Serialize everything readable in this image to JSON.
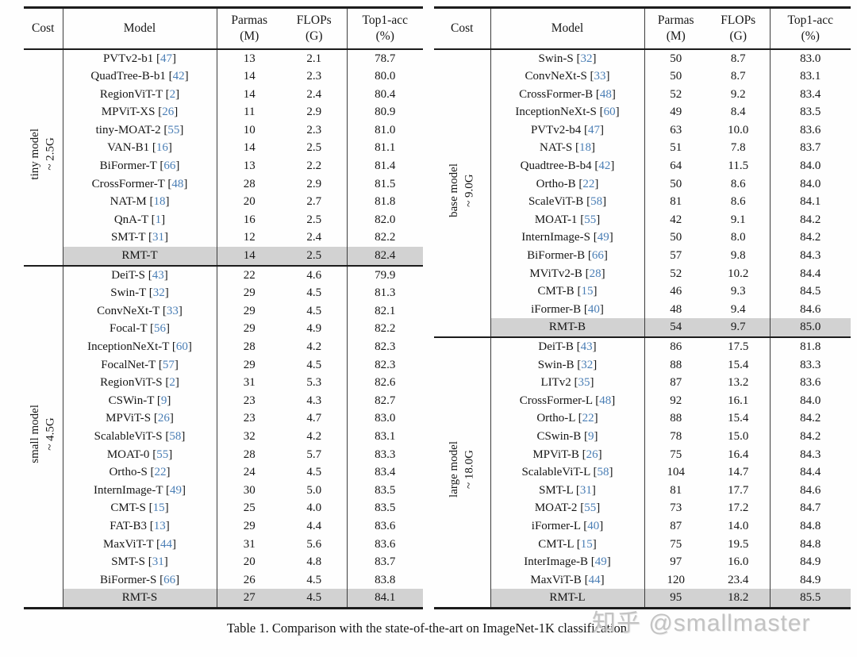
{
  "caption": "Table 1. Comparison with the state-of-the-art on ImageNet-1K classification.",
  "watermark": "知乎 @smallmaster",
  "citation": {
    "open": "[",
    "close": "]"
  },
  "colors": {
    "ref_blue": "#4a7eb5",
    "highlight_gray": "#d2d2d2"
  },
  "header": {
    "cost": "Cost",
    "model": "Model",
    "params_line1": "Parmas",
    "params_line2": "(M)",
    "flops_line1": "FLOPs",
    "flops_line2": "(G)",
    "acc_line1": "Top1-acc",
    "acc_line2": "(%)"
  },
  "tables": [
    {
      "sections": [
        {
          "cost_line1": "tiny model",
          "cost_line2": "~ 2.5G",
          "rows": [
            {
              "model": "PVTv2-b1",
              "ref": "47",
              "params": "13",
              "flops": "2.1",
              "acc": "78.7"
            },
            {
              "model": "QuadTree-B-b1",
              "ref": "42",
              "params": "14",
              "flops": "2.3",
              "acc": "80.0"
            },
            {
              "model": "RegionViT-T",
              "ref": "2",
              "params": "14",
              "flops": "2.4",
              "acc": "80.4"
            },
            {
              "model": "MPViT-XS",
              "ref": "26",
              "params": "11",
              "flops": "2.9",
              "acc": "80.9"
            },
            {
              "model": "tiny-MOAT-2",
              "ref": "55",
              "params": "10",
              "flops": "2.3",
              "acc": "81.0"
            },
            {
              "model": "VAN-B1",
              "ref": "16",
              "params": "14",
              "flops": "2.5",
              "acc": "81.1"
            },
            {
              "model": "BiFormer-T",
              "ref": "66",
              "params": "13",
              "flops": "2.2",
              "acc": "81.4"
            },
            {
              "model": "CrossFormer-T",
              "ref": "48",
              "params": "28",
              "flops": "2.9",
              "acc": "81.5"
            },
            {
              "model": "NAT-M",
              "ref": "18",
              "params": "20",
              "flops": "2.7",
              "acc": "81.8"
            },
            {
              "model": "QnA-T",
              "ref": "1",
              "params": "16",
              "flops": "2.5",
              "acc": "82.0"
            },
            {
              "model": "SMT-T",
              "ref": "31",
              "params": "12",
              "flops": "2.4",
              "acc": "82.2"
            },
            {
              "model": "RMT-T",
              "ref": null,
              "params": "14",
              "flops": "2.5",
              "acc": "82.4",
              "highlight": true
            }
          ]
        },
        {
          "cost_line1": "small model",
          "cost_line2": "~ 4.5G",
          "rows": [
            {
              "model": "DeiT-S",
              "ref": "43",
              "params": "22",
              "flops": "4.6",
              "acc": "79.9"
            },
            {
              "model": "Swin-T",
              "ref": "32",
              "params": "29",
              "flops": "4.5",
              "acc": "81.3"
            },
            {
              "model": "ConvNeXt-T",
              "ref": "33",
              "params": "29",
              "flops": "4.5",
              "acc": "82.1"
            },
            {
              "model": "Focal-T",
              "ref": "56",
              "params": "29",
              "flops": "4.9",
              "acc": "82.2"
            },
            {
              "model": "InceptionNeXt-T",
              "ref": "60",
              "params": "28",
              "flops": "4.2",
              "acc": "82.3"
            },
            {
              "model": "FocalNet-T",
              "ref": "57",
              "params": "29",
              "flops": "4.5",
              "acc": "82.3"
            },
            {
              "model": "RegionViT-S",
              "ref": "2",
              "params": "31",
              "flops": "5.3",
              "acc": "82.6"
            },
            {
              "model": "CSWin-T",
              "ref": "9",
              "params": "23",
              "flops": "4.3",
              "acc": "82.7"
            },
            {
              "model": "MPViT-S",
              "ref": "26",
              "params": "23",
              "flops": "4.7",
              "acc": "83.0"
            },
            {
              "model": "ScalableViT-S",
              "ref": "58",
              "params": "32",
              "flops": "4.2",
              "acc": "83.1"
            },
            {
              "model": "MOAT-0",
              "ref": "55",
              "params": "28",
              "flops": "5.7",
              "acc": "83.3"
            },
            {
              "model": "Ortho-S",
              "ref": "22",
              "params": "24",
              "flops": "4.5",
              "acc": "83.4"
            },
            {
              "model": "InternImage-T",
              "ref": "49",
              "params": "30",
              "flops": "5.0",
              "acc": "83.5"
            },
            {
              "model": "CMT-S",
              "ref": "15",
              "params": "25",
              "flops": "4.0",
              "acc": "83.5"
            },
            {
              "model": "FAT-B3",
              "ref": "13",
              "params": "29",
              "flops": "4.4",
              "acc": "83.6"
            },
            {
              "model": "MaxViT-T",
              "ref": "44",
              "params": "31",
              "flops": "5.6",
              "acc": "83.6"
            },
            {
              "model": "SMT-S",
              "ref": "31",
              "params": "20",
              "flops": "4.8",
              "acc": "83.7"
            },
            {
              "model": "BiFormer-S",
              "ref": "66",
              "params": "26",
              "flops": "4.5",
              "acc": "83.8"
            },
            {
              "model": "RMT-S",
              "ref": null,
              "params": "27",
              "flops": "4.5",
              "acc": "84.1",
              "highlight": true
            }
          ]
        }
      ]
    },
    {
      "sections": [
        {
          "cost_line1": "base model",
          "cost_line2": "~ 9.0G",
          "rows": [
            {
              "model": "Swin-S",
              "ref": "32",
              "params": "50",
              "flops": "8.7",
              "acc": "83.0"
            },
            {
              "model": "ConvNeXt-S",
              "ref": "33",
              "params": "50",
              "flops": "8.7",
              "acc": "83.1"
            },
            {
              "model": "CrossFormer-B",
              "ref": "48",
              "params": "52",
              "flops": "9.2",
              "acc": "83.4"
            },
            {
              "model": "InceptionNeXt-S",
              "ref": "60",
              "params": "49",
              "flops": "8.4",
              "acc": "83.5"
            },
            {
              "model": "PVTv2-b4",
              "ref": "47",
              "params": "63",
              "flops": "10.0",
              "acc": "83.6"
            },
            {
              "model": "NAT-S",
              "ref": "18",
              "params": "51",
              "flops": "7.8",
              "acc": "83.7"
            },
            {
              "model": "Quadtree-B-b4",
              "ref": "42",
              "params": "64",
              "flops": "11.5",
              "acc": "84.0"
            },
            {
              "model": "Ortho-B",
              "ref": "22",
              "params": "50",
              "flops": "8.6",
              "acc": "84.0"
            },
            {
              "model": "ScaleViT-B",
              "ref": "58",
              "params": "81",
              "flops": "8.6",
              "acc": "84.1"
            },
            {
              "model": "MOAT-1",
              "ref": "55",
              "params": "42",
              "flops": "9.1",
              "acc": "84.2"
            },
            {
              "model": "InternImage-S",
              "ref": "49",
              "params": "50",
              "flops": "8.0",
              "acc": "84.2"
            },
            {
              "model": "BiFormer-B",
              "ref": "66",
              "params": "57",
              "flops": "9.8",
              "acc": "84.3"
            },
            {
              "model": "MViTv2-B",
              "ref": "28",
              "params": "52",
              "flops": "10.2",
              "acc": "84.4"
            },
            {
              "model": "CMT-B",
              "ref": "15",
              "params": "46",
              "flops": "9.3",
              "acc": "84.5"
            },
            {
              "model": "iFormer-B",
              "ref": "40",
              "params": "48",
              "flops": "9.4",
              "acc": "84.6"
            },
            {
              "model": "RMT-B",
              "ref": null,
              "params": "54",
              "flops": "9.7",
              "acc": "85.0",
              "highlight": true
            }
          ]
        },
        {
          "cost_line1": "large model",
          "cost_line2": "~ 18.0G",
          "rows": [
            {
              "model": "DeiT-B",
              "ref": "43",
              "params": "86",
              "flops": "17.5",
              "acc": "81.8"
            },
            {
              "model": "Swin-B",
              "ref": "32",
              "params": "88",
              "flops": "15.4",
              "acc": "83.3"
            },
            {
              "model": "LITv2",
              "ref": "35",
              "params": "87",
              "flops": "13.2",
              "acc": "83.6"
            },
            {
              "model": "CrossFormer-L",
              "ref": "48",
              "params": "92",
              "flops": "16.1",
              "acc": "84.0"
            },
            {
              "model": "Ortho-L",
              "ref": "22",
              "params": "88",
              "flops": "15.4",
              "acc": "84.2"
            },
            {
              "model": "CSwin-B",
              "ref": "9",
              "params": "78",
              "flops": "15.0",
              "acc": "84.2"
            },
            {
              "model": "MPViT-B",
              "ref": "26",
              "params": "75",
              "flops": "16.4",
              "acc": "84.3"
            },
            {
              "model": "ScalableViT-L",
              "ref": "58",
              "params": "104",
              "flops": "14.7",
              "acc": "84.4"
            },
            {
              "model": "SMT-L",
              "ref": "31",
              "params": "81",
              "flops": "17.7",
              "acc": "84.6"
            },
            {
              "model": "MOAT-2",
              "ref": "55",
              "params": "73",
              "flops": "17.2",
              "acc": "84.7"
            },
            {
              "model": "iFormer-L",
              "ref": "40",
              "params": "87",
              "flops": "14.0",
              "acc": "84.8"
            },
            {
              "model": "CMT-L",
              "ref": "15",
              "params": "75",
              "flops": "19.5",
              "acc": "84.8"
            },
            {
              "model": "InterImage-B",
              "ref": "49",
              "params": "97",
              "flops": "16.0",
              "acc": "84.9"
            },
            {
              "model": "MaxViT-B",
              "ref": "44",
              "params": "120",
              "flops": "23.4",
              "acc": "84.9"
            },
            {
              "model": "RMT-L",
              "ref": null,
              "params": "95",
              "flops": "18.2",
              "acc": "85.5",
              "highlight": true
            }
          ]
        }
      ]
    }
  ]
}
